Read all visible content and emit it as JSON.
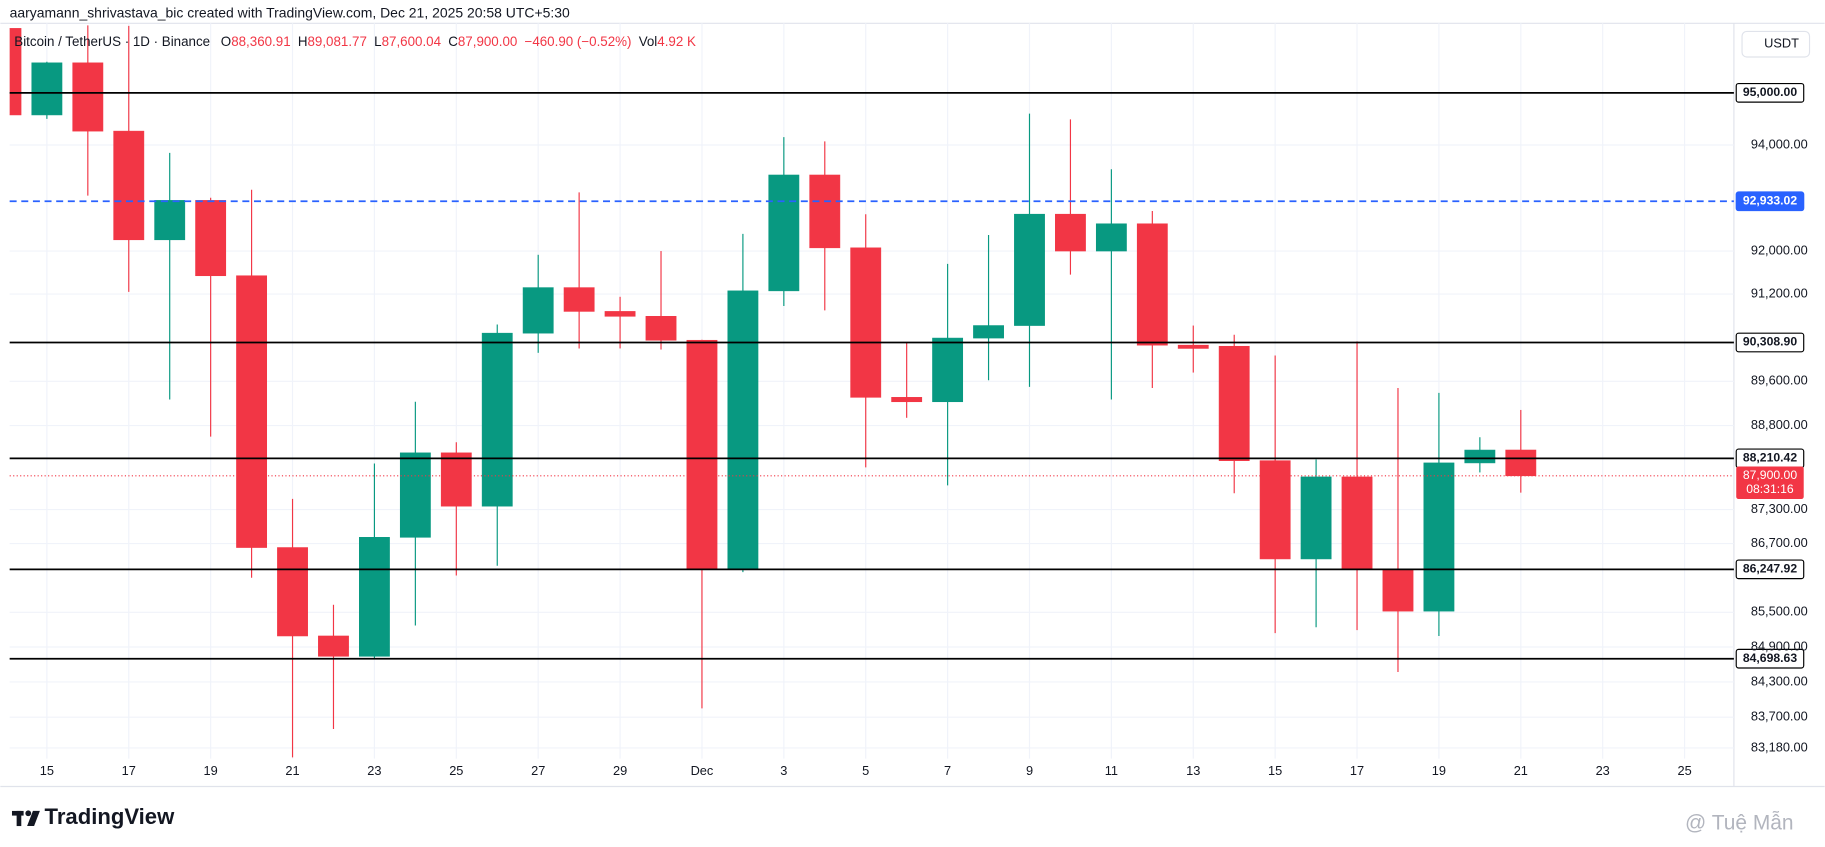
{
  "header": {
    "attribution": "aaryamann_shrivastava_bic created with TradingView.com, Dec 21, 2025 20:58 UTC+5:30",
    "symbol": "Bitcoin / TetherUS · 1D · Binance",
    "ohlc": [
      {
        "key": "O",
        "value": "88,360.91"
      },
      {
        "key": "H",
        "value": "89,081.77"
      },
      {
        "key": "L",
        "value": "87,600.04"
      },
      {
        "key": "C",
        "value": "87,900.00"
      }
    ],
    "change": "−460.90 (−0.52%)",
    "vol_key": "Vol",
    "vol": "4.92 K"
  },
  "currency": "USDT",
  "chart_data": {
    "type": "candlestick",
    "categories": [
      null,
      "15",
      null,
      "17",
      null,
      "19",
      null,
      "21",
      null,
      "23",
      null,
      "25",
      null,
      "27",
      null,
      "29",
      null,
      "Dec",
      null,
      "3",
      null,
      "5",
      null,
      "7",
      null,
      "9",
      null,
      "11",
      null,
      "13",
      null,
      "15",
      null,
      "17",
      null,
      "19",
      null,
      "21",
      null,
      "23",
      null,
      "25"
    ],
    "open": [
      96250,
      94575,
      95580,
      94265,
      92210,
      92950,
      91540,
      86630,
      85090,
      84740,
      86810,
      88310,
      87360,
      90480,
      91320,
      90880,
      90790,
      90350,
      86250,
      91260,
      93430,
      92060,
      89310,
      89230,
      90390,
      90620,
      92690,
      92000,
      92510,
      90260,
      90240,
      88170,
      86430,
      87880,
      86250,
      85520,
      88130,
      88360.91,
      null,
      null,
      null,
      null
    ],
    "high": [
      96340,
      95600,
      96310,
      96300,
      93850,
      93000,
      93150,
      87490,
      85630,
      88120,
      89230,
      88500,
      90640,
      91930,
      93100,
      91150,
      92000,
      90360,
      92320,
      94150,
      94070,
      92690,
      90310,
      91760,
      92300,
      94600,
      94490,
      93540,
      92750,
      90620,
      90450,
      90070,
      88190,
      90330,
      89480,
      89390,
      88590,
      89081.77,
      null,
      null,
      null,
      null
    ],
    "low": [
      94500,
      94500,
      93040,
      91240,
      89270,
      88600,
      86100,
      83020,
      83500,
      84700,
      85270,
      86140,
      86310,
      90120,
      90200,
      90200,
      90180,
      83850,
      86200,
      90980,
      90900,
      88050,
      88940,
      87730,
      89620,
      89500,
      91560,
      89270,
      89480,
      89760,
      87590,
      85140,
      85240,
      85190,
      84470,
      85090,
      87960,
      87600.04,
      null,
      null,
      null,
      null
    ],
    "close": [
      94575,
      95580,
      94265,
      92210,
      92950,
      91540,
      86630,
      85090,
      84740,
      86810,
      88310,
      87360,
      90480,
      91320,
      90880,
      90790,
      90350,
      86250,
      91260,
      93430,
      92060,
      89310,
      89230,
      90390,
      90620,
      92690,
      92000,
      92510,
      90260,
      90200,
      88170,
      86430,
      87880,
      86250,
      85520,
      88130,
      88360,
      87900,
      null,
      null,
      null,
      null
    ],
    "up_color": "#089981",
    "down_color": "#f23645",
    "log_scale": true,
    "grid": true,
    "ylim": [
      83000,
      96350
    ],
    "yticks": [
      {
        "value": 94000,
        "label": "94,000.00"
      },
      {
        "value": 92000,
        "label": "92,000.00"
      },
      {
        "value": 91200,
        "label": "91,200.00"
      },
      {
        "value": 89600,
        "label": "89,600.00"
      },
      {
        "value": 88800,
        "label": "88,800.00"
      },
      {
        "value": 87300,
        "label": "87,300.00"
      },
      {
        "value": 86700,
        "label": "86,700.00"
      },
      {
        "value": 85500,
        "label": "85,500.00"
      },
      {
        "value": 84900,
        "label": "84,900.00"
      },
      {
        "value": 84300,
        "label": "84,300.00"
      },
      {
        "value": 83700,
        "label": "83,700.00"
      },
      {
        "value": 83180,
        "label": "83,180.00"
      }
    ],
    "levels": [
      {
        "value": 95000,
        "label": "95,000.00",
        "color": "#000000",
        "style": "solid"
      },
      {
        "value": 92933.02,
        "label": "92,933.02",
        "color": "#2962ff",
        "style": "dashed"
      },
      {
        "value": 90308.9,
        "label": "90,308.90",
        "color": "#000000",
        "style": "solid"
      },
      {
        "value": 88210.42,
        "label": "88,210.42",
        "color": "#000000",
        "style": "solid"
      },
      {
        "value": 86247.92,
        "label": "86,247.92",
        "color": "#000000",
        "style": "solid"
      },
      {
        "value": 84698.63,
        "label": "84,698.63",
        "color": "#000000",
        "style": "solid"
      }
    ],
    "last_price": {
      "value": 87900,
      "label": "87,900.00",
      "countdown": "08:31:16",
      "color": "#f23645"
    }
  },
  "footer": {
    "brand": "TradingView",
    "watermark": "@ Tuệ Mẫn"
  }
}
